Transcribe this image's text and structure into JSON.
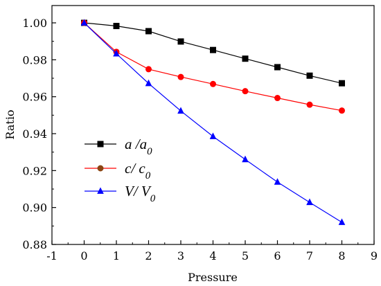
{
  "chart_data": {
    "type": "line",
    "title": "",
    "xlabel": "Pressure",
    "ylabel": "Ratio",
    "xlim": [
      -1,
      9
    ],
    "ylim": [
      0.88,
      1.005
    ],
    "xticks": [
      -1,
      0,
      1,
      2,
      3,
      4,
      5,
      6,
      7,
      8,
      9
    ],
    "xtick_labels": [
      "-1",
      "0",
      "1",
      "2",
      "3",
      "4",
      "5",
      "6",
      "7",
      "8",
      "9"
    ],
    "yticks": [
      0.88,
      0.9,
      0.92,
      0.94,
      0.96,
      0.98,
      1.0
    ],
    "ytick_labels": [
      "0.88",
      "0.90",
      "0.92",
      "0.94",
      "0.96",
      "0.98",
      "1.00"
    ],
    "grid": false,
    "legend_position": "lower-left",
    "x": [
      0,
      1,
      2,
      3,
      4,
      5,
      6,
      7,
      8
    ],
    "series": [
      {
        "label": "a /a",
        "label_sub": "0",
        "color": "#000000",
        "marker": "square",
        "values": [
          1.0,
          0.9983,
          0.9955,
          0.9899,
          0.9853,
          0.9806,
          0.976,
          0.9714,
          0.9673
        ]
      },
      {
        "label": "c/ c",
        "label_sub": "0",
        "color": "#ff0000",
        "legend_marker_color": "#8b4513",
        "marker": "circle",
        "values": [
          1.0,
          0.9843,
          0.9749,
          0.9707,
          0.9669,
          0.963,
          0.9593,
          0.9557,
          0.9525
        ]
      },
      {
        "label": "V/ V",
        "label_sub": "0",
        "color": "#0000ff",
        "marker": "triangle",
        "values": [
          1.0,
          0.9833,
          0.9672,
          0.9523,
          0.9385,
          0.926,
          0.9138,
          0.9028,
          0.892
        ]
      }
    ]
  }
}
